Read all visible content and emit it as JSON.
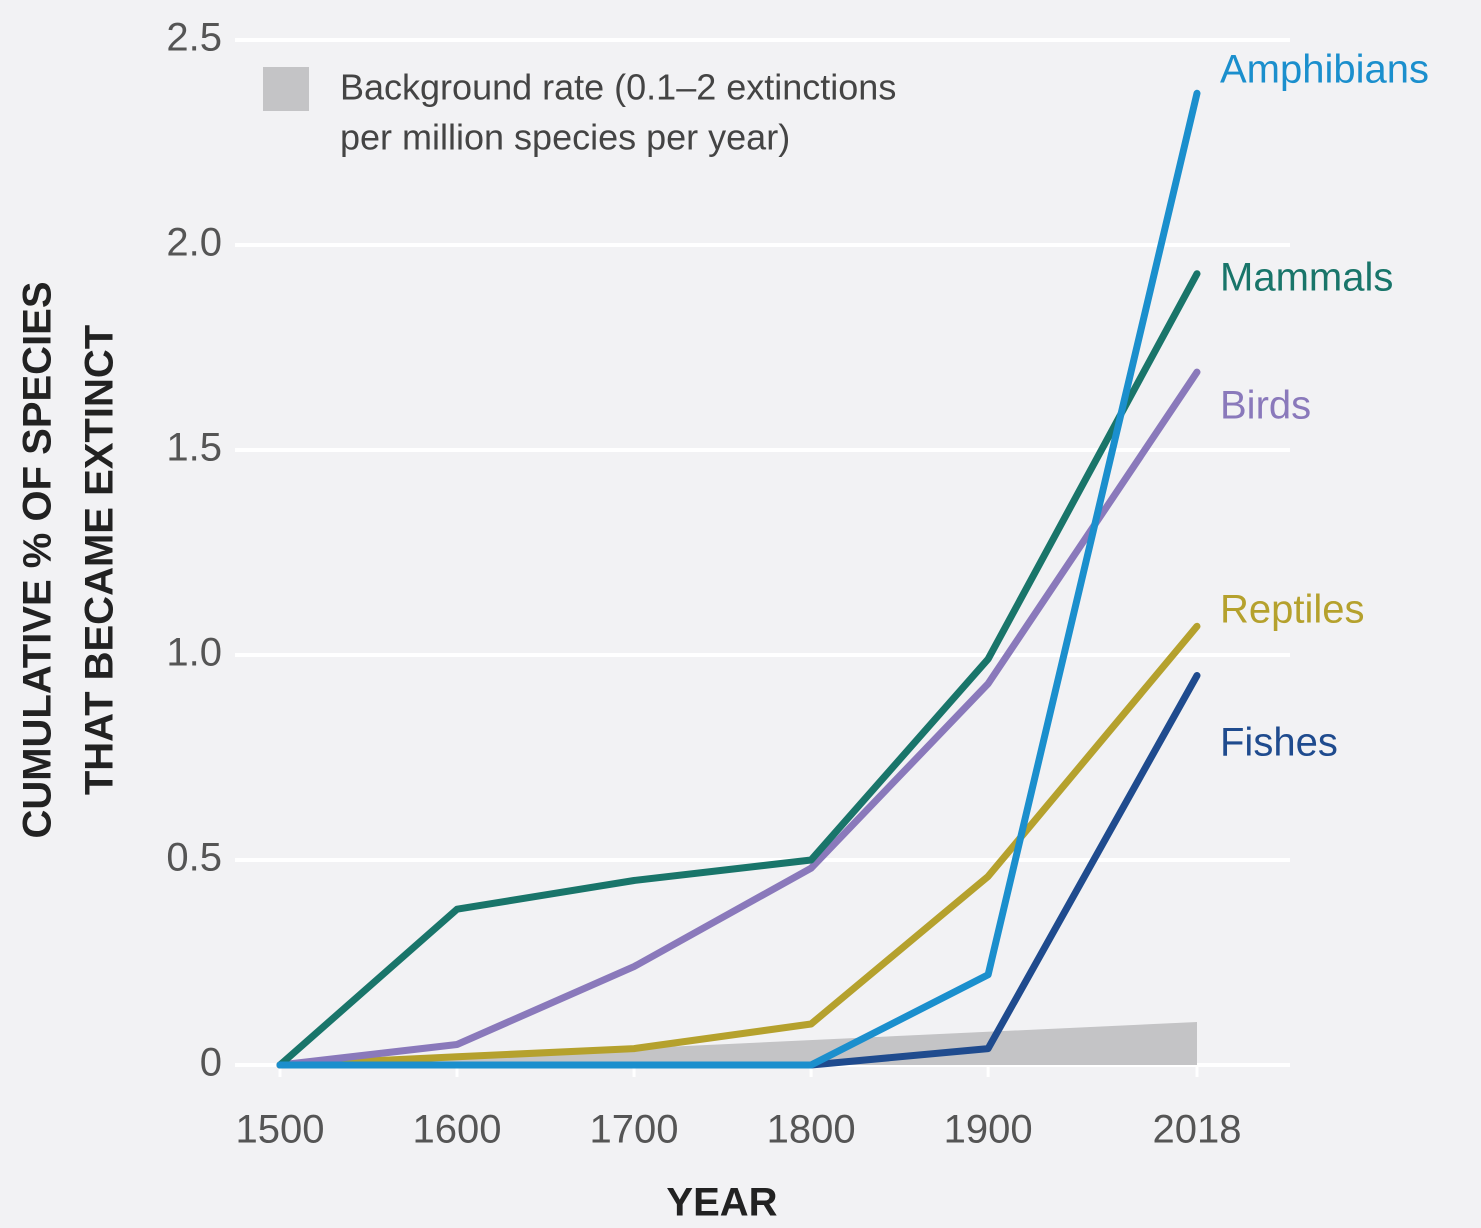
{
  "chart_data": {
    "type": "line",
    "x": [
      1500,
      1600,
      1700,
      1800,
      1900,
      2018
    ],
    "xlim": [
      1500,
      2018
    ],
    "xticks": [
      1500,
      1600,
      1700,
      1800,
      1900,
      2018
    ],
    "ylim": [
      0,
      2.5
    ],
    "yticks": [
      0,
      0.5,
      {
        "value": 1,
        "label": "1.0"
      },
      1.5,
      {
        "value": 2,
        "label": "2.0"
      },
      2.5
    ],
    "grid": true,
    "x_label": "YEAR",
    "y_label": [
      "CUMULATIVE % OF SPECIES",
      "THAT BECAME EXTINCT"
    ],
    "background": {
      "label": [
        "Background rate (0.1–2 extinctions",
        "per million species per year)"
      ],
      "color": "#c4c4c6",
      "x": [
        1500,
        2018
      ],
      "values": [
        0,
        0.105
      ]
    },
    "series": [
      {
        "name": "Amphibians",
        "color": "#1b8fcd",
        "values": [
          0,
          0,
          0,
          0,
          0.22,
          2.37
        ]
      },
      {
        "name": "Mammals",
        "color": "#19756a",
        "values": [
          0,
          0.38,
          0.45,
          0.5,
          0.99,
          1.93
        ]
      },
      {
        "name": "Birds",
        "color": "#8a79bb",
        "values": [
          0,
          0.05,
          0.24,
          0.48,
          0.93,
          1.69
        ]
      },
      {
        "name": "Reptiles",
        "color": "#b5a12d",
        "values": [
          0,
          0.02,
          0.04,
          0.1,
          0.46,
          1.07
        ]
      },
      {
        "name": "Fishes",
        "color": "#1f4b8e",
        "values": [
          0,
          0,
          0,
          0,
          0.04,
          0.95
        ]
      }
    ]
  }
}
